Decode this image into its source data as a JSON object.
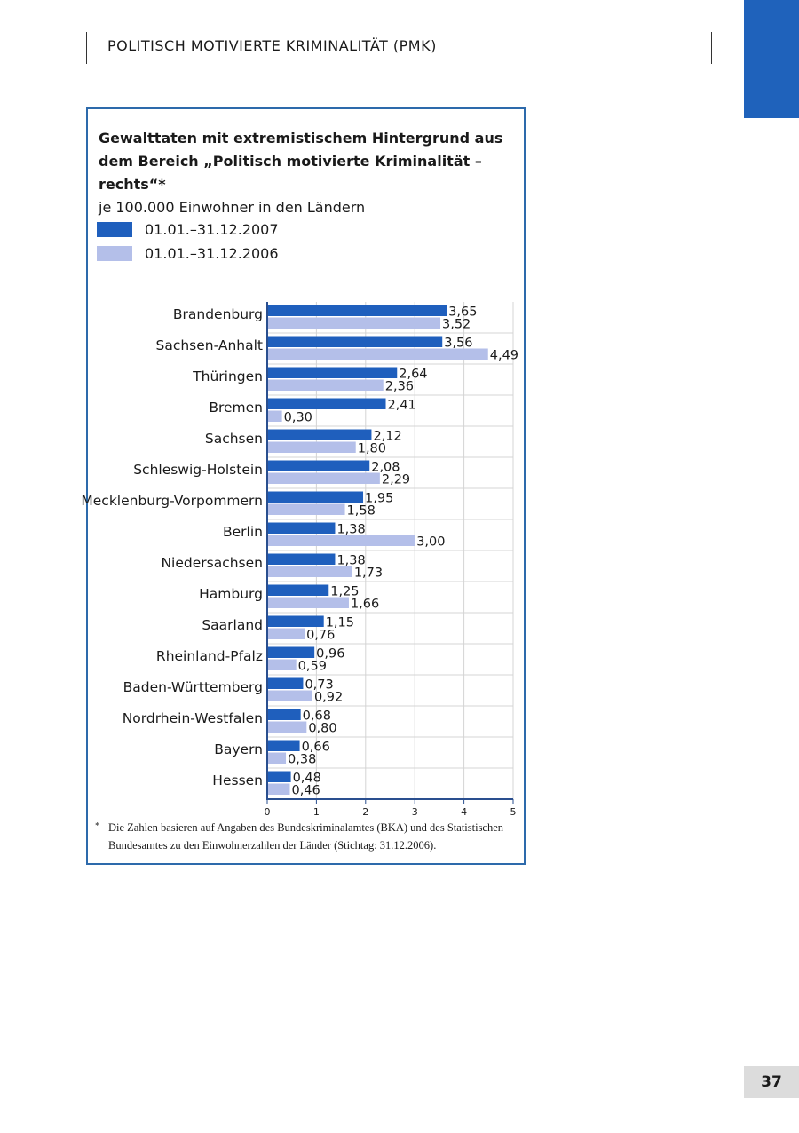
{
  "header": {
    "title": "POLITISCH MOTIVIERTE KRIMINALITÄT (PMK)"
  },
  "page_number": "37",
  "colors": {
    "series_2007": "#1f5fbd",
    "series_2006": "#b4bfe9",
    "corner_tab": "#1f62bb",
    "frame": "#2d6aab"
  },
  "footnote": {
    "marker": "*",
    "text": "Die Zahlen basieren auf Angaben des Bundeskriminalamtes (BKA) und des Statistischen Bundesamtes zu den Einwohnerzahlen der Länder (Stichtag: 31.12.2006)."
  },
  "chart_data": {
    "type": "bar",
    "orientation": "horizontal",
    "title": "Gewalttaten mit extremistischem Hintergrund aus dem Bereich „Politisch motivierte Kriminalität – rechts“*",
    "subtitle": "je 100.000 Einwohner in den Ländern",
    "xlabel": "",
    "ylabel": "",
    "xlim": [
      0,
      5
    ],
    "xticks": [
      "0",
      "1",
      "2",
      "3",
      "4",
      "5"
    ],
    "grid": true,
    "legend_position": "top-left",
    "categories": [
      "Brandenburg",
      "Sachsen-Anhalt",
      "Thüringen",
      "Bremen",
      "Sachsen",
      "Schleswig-Holstein",
      "Mecklenburg-Vorpommern",
      "Berlin",
      "Niedersachsen",
      "Hamburg",
      "Saarland",
      "Rheinland-Pfalz",
      "Baden-Württemberg",
      "Nordrhein-Westfalen",
      "Bayern",
      "Hessen"
    ],
    "series": [
      {
        "name": "01.01.–31.12.2007",
        "values": [
          3.65,
          3.56,
          2.64,
          2.41,
          2.12,
          2.08,
          1.95,
          1.38,
          1.38,
          1.25,
          1.15,
          0.96,
          0.73,
          0.68,
          0.66,
          0.48
        ],
        "labels": [
          "3,65",
          "3,56",
          "2,64",
          "2,41",
          "2,12",
          "2,08",
          "1,95",
          "1,38",
          "1,38",
          "1,25",
          "1,15",
          "0,96",
          "0,73",
          "0,68",
          "0,66",
          "0,48"
        ]
      },
      {
        "name": "01.01.–31.12.2006",
        "values": [
          3.52,
          4.49,
          2.36,
          0.3,
          1.8,
          2.29,
          1.58,
          3.0,
          1.73,
          1.66,
          0.76,
          0.59,
          0.92,
          0.8,
          0.38,
          0.46
        ],
        "labels": [
          "3,52",
          "4,49",
          "2,36",
          "0,30",
          "1,80",
          "2,29",
          "1,58",
          "3,00",
          "1,73",
          "1,66",
          "0,76",
          "0,59",
          "0,92",
          "0,80",
          "0,38",
          "0,46"
        ]
      }
    ]
  }
}
